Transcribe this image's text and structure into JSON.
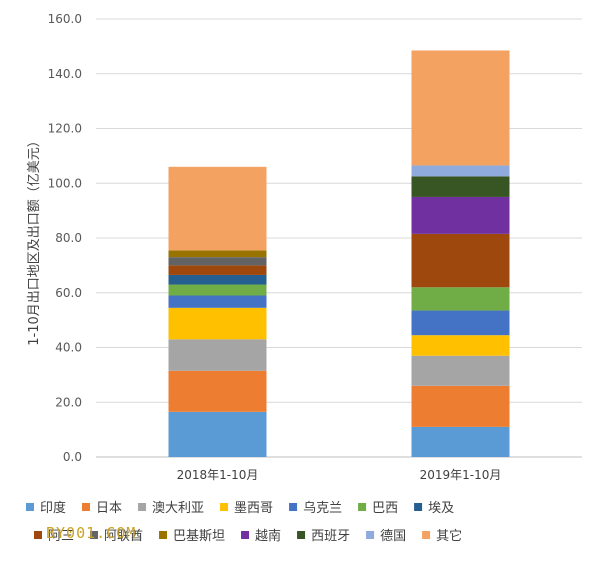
{
  "watermark": "BY001.COM",
  "chart_data": {
    "type": "bar",
    "stacked": true,
    "title": "",
    "xlabel": "",
    "ylabel": "1-10月出口地区及出口额（亿美元）",
    "ylim": [
      0,
      160
    ],
    "yticks": [
      "0.0",
      "20.0",
      "40.0",
      "60.0",
      "80.0",
      "100.0",
      "120.0",
      "140.0",
      "160.0"
    ],
    "grid": true,
    "legend": "bottom",
    "categories": [
      "2018年1-10月",
      "2019年1-10月"
    ],
    "series": [
      {
        "name": "印度",
        "color": "#5b9bd5",
        "values": [
          16.5,
          11.0
        ]
      },
      {
        "name": "日本",
        "color": "#ed7d31",
        "values": [
          15.0,
          15.0
        ]
      },
      {
        "name": "澳大利亚",
        "color": "#a5a5a5",
        "values": [
          11.5,
          11.0
        ]
      },
      {
        "name": "墨西哥",
        "color": "#ffc000",
        "values": [
          11.5,
          7.5
        ]
      },
      {
        "name": "乌克兰",
        "color": "#4472c4",
        "values": [
          4.5,
          9.0
        ]
      },
      {
        "name": "巴西",
        "color": "#70ad47",
        "values": [
          4.0,
          8.5
        ]
      },
      {
        "name": "埃及",
        "color": "#255e91",
        "values": [
          3.5,
          0.0
        ]
      },
      {
        "name": "阿三",
        "color": "#9e480e",
        "values": [
          3.5,
          19.5
        ]
      },
      {
        "name": "阿联酋",
        "color": "#636363",
        "values": [
          3.0,
          0.0
        ]
      },
      {
        "name": "巴基斯坦",
        "color": "#997300",
        "values": [
          2.5,
          0.0
        ]
      },
      {
        "name": "越南",
        "color": "#7030a0",
        "values": [
          0.0,
          13.5
        ]
      },
      {
        "name": "西班牙",
        "color": "#375623",
        "values": [
          0.0,
          7.5
        ]
      },
      {
        "name": "德国",
        "color": "#8faadc",
        "values": [
          0.0,
          4.0
        ]
      },
      {
        "name": "其它",
        "color": "#f4a261",
        "values": [
          30.5,
          42.0
        ]
      }
    ]
  }
}
